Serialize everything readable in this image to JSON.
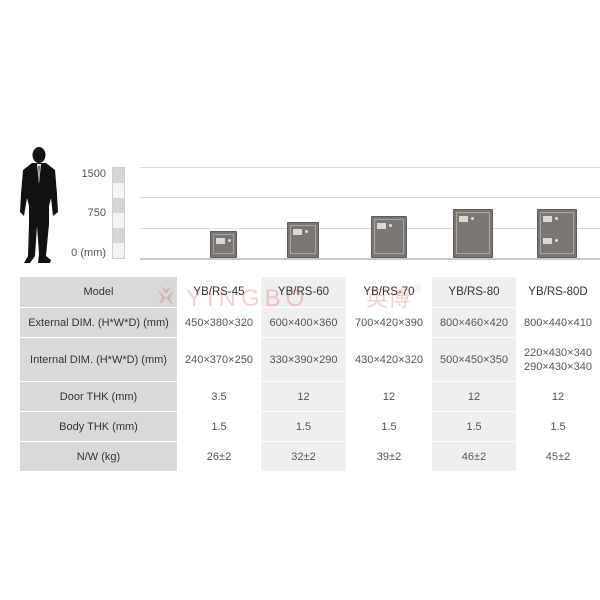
{
  "scale": {
    "labels": [
      "1500",
      "750",
      "0 (mm)"
    ],
    "max_mm": 1500
  },
  "safes": [
    {
      "model": "YB/RS-45",
      "height_mm": 450,
      "doors": 1
    },
    {
      "model": "YB/RS-60",
      "height_mm": 600,
      "doors": 1
    },
    {
      "model": "YB/RS-70",
      "height_mm": 700,
      "doors": 1
    },
    {
      "model": "YB/RS-80",
      "height_mm": 800,
      "doors": 1
    },
    {
      "model": "YB/RS-80D",
      "height_mm": 800,
      "doors": 2
    }
  ],
  "table": {
    "header_label": "Model",
    "models": [
      "YB/RS-45",
      "YB/RS-60",
      "YB/RS-70",
      "YB/RS-80",
      "YB/RS-80D"
    ],
    "rows": [
      {
        "label": "External DIM. (H*W*D) (mm)",
        "values": [
          "450×380×320",
          "600×400×360",
          "700×420×390",
          "800×460×420",
          "800×440×410"
        ]
      },
      {
        "label": "Internal DIM. (H*W*D) (mm)",
        "values": [
          "240×370×250",
          "330×390×290",
          "430×420×320",
          "500×450×350",
          "220×430×340\n290×430×340"
        ]
      },
      {
        "label": "Door THK (mm)",
        "values": [
          "3.5",
          "12",
          "12",
          "12",
          "12"
        ]
      },
      {
        "label": "Body THK (mm)",
        "values": [
          "1.5",
          "1.5",
          "1.5",
          "1.5",
          "1.5"
        ]
      },
      {
        "label": "N/W (kg)",
        "values": [
          "26±2",
          "32±2",
          "39±2",
          "46±2",
          "45±2"
        ]
      }
    ]
  },
  "colors": {
    "header": "#d9d9d9",
    "shade": "#efefef",
    "safe": "#7a7673"
  },
  "icons": [
    "businessman-silhouette-icon",
    "safe-icon"
  ],
  "watermark": {
    "brand": "YINGBO",
    "chinese": "英博",
    "mark": "®"
  }
}
